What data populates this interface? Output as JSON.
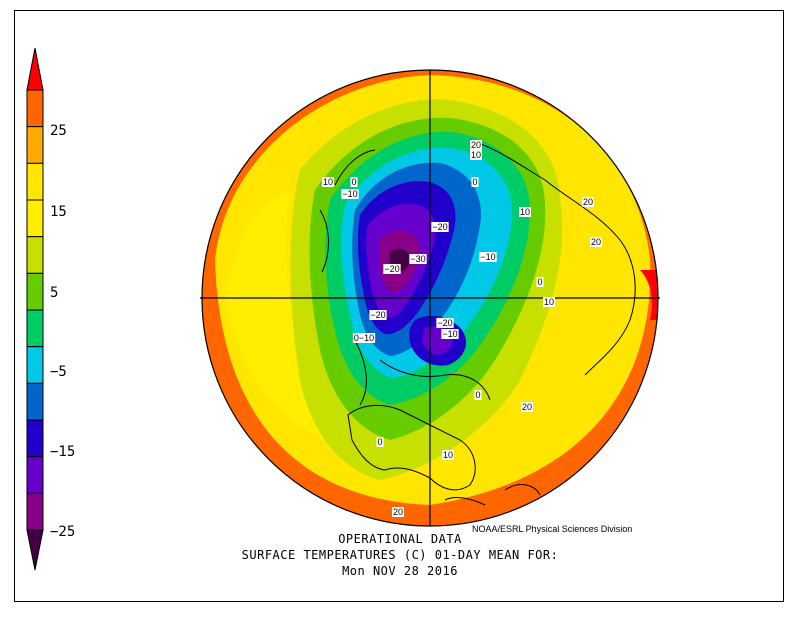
{
  "legend": {
    "labels": [
      "25",
      "15",
      "5",
      "−5",
      "−15",
      "−25"
    ],
    "bands": [
      {
        "color": "#ff0000"
      },
      {
        "color": "#ff6600"
      },
      {
        "color": "#ffaa00"
      },
      {
        "color": "#ffe600"
      },
      {
        "color": "#ffee00"
      },
      {
        "color": "#c8e000"
      },
      {
        "color": "#66cc00"
      },
      {
        "color": "#00cc66"
      },
      {
        "color": "#00c8e6"
      },
      {
        "color": "#0066cc"
      },
      {
        "color": "#2200cc"
      },
      {
        "color": "#6600cc"
      },
      {
        "color": "#880088"
      },
      {
        "color": "#440044"
      }
    ]
  },
  "map": {
    "contour_labels": [
      "20",
      "10",
      "0",
      "10",
      "0",
      "−10",
      "10",
      "20",
      "20",
      "−20",
      "−10",
      "−30",
      "−20",
      "0",
      "10",
      "−20",
      "−20",
      "0−10",
      "−10",
      "0",
      "20",
      "0",
      "10",
      "20"
    ]
  },
  "credit": "NOAA/ESRL Physical Sciences Division",
  "title": {
    "line1": "OPERATIONAL DATA",
    "line2": "SURFACE TEMPERATURES (C)   01-DAY MEAN FOR:",
    "line3": "Mon NOV 28 2016"
  }
}
